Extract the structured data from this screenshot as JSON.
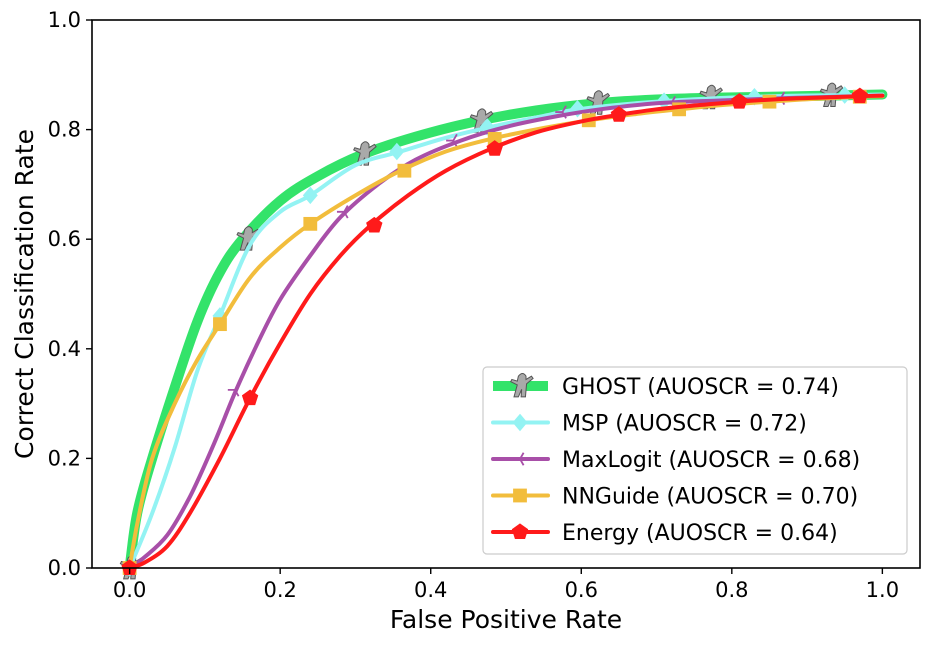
{
  "chart_data": {
    "type": "line",
    "title": "",
    "xlabel": "False Positive Rate",
    "ylabel": "Correct Classification Rate",
    "xlim": [
      -0.05,
      1.05
    ],
    "ylim": [
      0.0,
      1.0
    ],
    "xticks": [
      "0.0",
      "0.2",
      "0.4",
      "0.6",
      "0.8",
      "1.0"
    ],
    "yticks": [
      "0.0",
      "0.2",
      "0.4",
      "0.6",
      "0.8",
      "1.0"
    ],
    "grid": false,
    "legend_position": "bottom-right",
    "series": [
      {
        "name": "GHOST (AUOSCR = 0.74)",
        "color": "#33e36a",
        "marker": "person-icon",
        "marker_color": "#a9a9a9",
        "x": [
          0.0,
          0.01,
          0.03,
          0.06,
          0.09,
          0.12,
          0.15,
          0.2,
          0.25,
          0.31,
          0.38,
          0.46,
          0.54,
          0.62,
          0.7,
          0.77,
          0.85,
          0.93,
          1.0
        ],
        "y": [
          0.0,
          0.1,
          0.2,
          0.33,
          0.45,
          0.54,
          0.6,
          0.67,
          0.715,
          0.755,
          0.787,
          0.815,
          0.835,
          0.848,
          0.855,
          0.858,
          0.86,
          0.862,
          0.864
        ],
        "marker_points": [
          [
            0.0,
            0.0
          ],
          [
            0.155,
            0.6
          ],
          [
            0.31,
            0.755
          ],
          [
            0.465,
            0.815
          ],
          [
            0.62,
            0.848
          ],
          [
            0.77,
            0.858
          ],
          [
            0.93,
            0.862
          ]
        ]
      },
      {
        "name": "MSP (AUOSCR = 0.72)",
        "color": "#93f3f3",
        "marker": "diamond-icon",
        "x": [
          0.0,
          0.03,
          0.06,
          0.09,
          0.12,
          0.16,
          0.2,
          0.24,
          0.3,
          0.36,
          0.42,
          0.48,
          0.55,
          0.6,
          0.71,
          0.83,
          0.95,
          1.0
        ],
        "y": [
          0.0,
          0.1,
          0.22,
          0.36,
          0.46,
          0.59,
          0.65,
          0.68,
          0.735,
          0.76,
          0.785,
          0.805,
          0.825,
          0.838,
          0.852,
          0.86,
          0.863,
          0.864
        ],
        "marker_points": [
          [
            0.0,
            0.0
          ],
          [
            0.12,
            0.46
          ],
          [
            0.24,
            0.68
          ],
          [
            0.355,
            0.76
          ],
          [
            0.475,
            0.805
          ],
          [
            0.595,
            0.838
          ],
          [
            0.71,
            0.852
          ],
          [
            0.83,
            0.86
          ],
          [
            0.95,
            0.863
          ]
        ]
      },
      {
        "name": "MaxLogit (AUOSCR = 0.68)",
        "color": "#a84fa8",
        "marker": "tri-left-icon",
        "x": [
          0.0,
          0.02,
          0.05,
          0.08,
          0.11,
          0.14,
          0.17,
          0.2,
          0.24,
          0.28,
          0.33,
          0.38,
          0.44,
          0.5,
          0.57,
          0.63,
          0.7,
          0.78,
          0.86,
          0.94,
          1.0
        ],
        "y": [
          0.0,
          0.02,
          0.06,
          0.13,
          0.22,
          0.32,
          0.41,
          0.49,
          0.57,
          0.64,
          0.7,
          0.745,
          0.78,
          0.805,
          0.825,
          0.838,
          0.848,
          0.853,
          0.857,
          0.86,
          0.862
        ],
        "marker_points": [
          [
            0.0,
            0.0
          ],
          [
            0.14,
            0.325
          ],
          [
            0.285,
            0.65
          ],
          [
            0.43,
            0.78
          ],
          [
            0.575,
            0.832
          ],
          [
            0.72,
            0.849
          ],
          [
            0.865,
            0.857
          ]
        ]
      },
      {
        "name": "NNGuide (AUOSCR = 0.70)",
        "color": "#f2bd3c",
        "marker": "square-icon",
        "x": [
          0.0,
          0.01,
          0.03,
          0.06,
          0.09,
          0.12,
          0.16,
          0.2,
          0.24,
          0.3,
          0.36,
          0.42,
          0.48,
          0.55,
          0.61,
          0.67,
          0.73,
          0.79,
          0.85,
          0.91,
          0.97,
          1.0
        ],
        "y": [
          0.0,
          0.08,
          0.2,
          0.3,
          0.38,
          0.445,
          0.53,
          0.585,
          0.628,
          0.68,
          0.725,
          0.76,
          0.783,
          0.803,
          0.817,
          0.828,
          0.837,
          0.845,
          0.851,
          0.856,
          0.86,
          0.861
        ],
        "marker_points": [
          [
            0.0,
            0.0
          ],
          [
            0.12,
            0.445
          ],
          [
            0.24,
            0.628
          ],
          [
            0.365,
            0.725
          ],
          [
            0.485,
            0.783
          ],
          [
            0.61,
            0.817
          ],
          [
            0.73,
            0.837
          ],
          [
            0.85,
            0.851
          ],
          [
            0.97,
            0.86
          ]
        ]
      },
      {
        "name": "Energy (AUOSCR = 0.64)",
        "color": "#ff1a1a",
        "marker": "pentagon-icon",
        "x": [
          0.0,
          0.02,
          0.05,
          0.08,
          0.12,
          0.16,
          0.2,
          0.24,
          0.28,
          0.32,
          0.37,
          0.42,
          0.48,
          0.54,
          0.6,
          0.65,
          0.7,
          0.76,
          0.81,
          0.87,
          0.93,
          0.97,
          1.0
        ],
        "y": [
          0.0,
          0.01,
          0.04,
          0.1,
          0.2,
          0.31,
          0.41,
          0.5,
          0.57,
          0.625,
          0.68,
          0.725,
          0.765,
          0.795,
          0.815,
          0.827,
          0.837,
          0.845,
          0.851,
          0.856,
          0.859,
          0.861,
          0.862
        ],
        "marker_points": [
          [
            0.0,
            0.0
          ],
          [
            0.16,
            0.31
          ],
          [
            0.325,
            0.625
          ],
          [
            0.485,
            0.765
          ],
          [
            0.65,
            0.827
          ],
          [
            0.81,
            0.851
          ],
          [
            0.97,
            0.861
          ]
        ]
      }
    ]
  }
}
